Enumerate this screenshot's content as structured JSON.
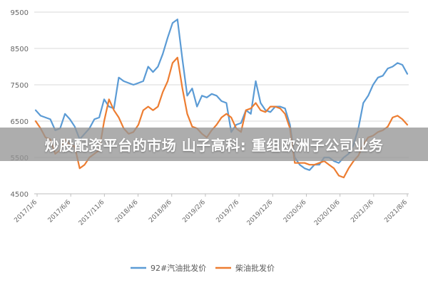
{
  "overlay": {
    "headline": "炒股配资平台的市场 山子高科: 重组欧洲子公司业务"
  },
  "colors": {
    "series_92": "#5b9bd5",
    "series_diesel": "#ed7d31",
    "grid": "#d9d9d9",
    "banner": "#969696"
  },
  "chart_data": {
    "type": "line",
    "xlabel": "",
    "ylabel": "",
    "ylim": [
      4500,
      9500
    ],
    "yticks": [
      4500,
      5500,
      6500,
      7500,
      8500,
      9500
    ],
    "grid": "horizontal",
    "legend_position": "bottom",
    "x_tick_labels": [
      "2017/1/6",
      "2017/6/6",
      "2017/11/6",
      "2018/4/6",
      "2018/9/6",
      "2019/2/6",
      "2019/7/6",
      "2019/12/6",
      "2020/5/6",
      "2020/10/6",
      "2021/3/6",
      "2021/8/6"
    ],
    "series": [
      {
        "name": "92#汽油批发价",
        "color_key": "series_92",
        "values": [
          6800,
          6650,
          6600,
          6550,
          6250,
          6300,
          6700,
          6550,
          6350,
          6000,
          6150,
          6300,
          6550,
          6600,
          7100,
          6900,
          6850,
          7700,
          7600,
          7550,
          7500,
          7550,
          7600,
          8000,
          7850,
          8000,
          8350,
          8800,
          9200,
          9300,
          8200,
          7200,
          7400,
          6900,
          7200,
          7150,
          7250,
          7200,
          7050,
          7000,
          6200,
          6400,
          6450,
          6800,
          6700,
          7600,
          7000,
          6800,
          6750,
          6900,
          6900,
          6850,
          6400,
          5500,
          5300,
          5200,
          5150,
          5300,
          5300,
          5500,
          5500,
          5400,
          5350,
          5500,
          5600,
          5850,
          6300,
          7000,
          7200,
          7500,
          7700,
          7750,
          7950,
          8000,
          8100,
          8050,
          7800
        ]
      },
      {
        "name": "柴油批发价",
        "color_key": "series_diesel",
        "values": [
          6500,
          6300,
          6050,
          6000,
          5600,
          5700,
          6000,
          5850,
          5800,
          5200,
          5300,
          5500,
          5600,
          5700,
          6500,
          7100,
          6800,
          6600,
          6300,
          6150,
          6200,
          6400,
          6800,
          6900,
          6800,
          6900,
          7300,
          7600,
          8100,
          8250,
          7400,
          6700,
          6350,
          6300,
          6150,
          6050,
          6250,
          6400,
          6600,
          6700,
          6600,
          6300,
          6200,
          6800,
          6850,
          7000,
          6800,
          6750,
          6900,
          6900,
          6850,
          6700,
          6300,
          5350,
          5350,
          5350,
          5300,
          5300,
          5350,
          5400,
          5300,
          5200,
          5000,
          4950,
          5200,
          5400,
          5550,
          5850,
          6050,
          6100,
          6200,
          6250,
          6350,
          6600,
          6650,
          6550,
          6400
        ]
      }
    ]
  }
}
